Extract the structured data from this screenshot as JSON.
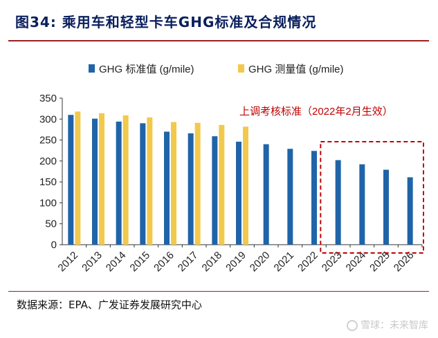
{
  "header": {
    "title": "图34:  乘用车和轻型卡车GHG标准及合规情况"
  },
  "footer": {
    "source": "数据来源：EPA、广发证券发展研究中心",
    "watermark": "雪球：未来智库"
  },
  "colors": {
    "standard": "#1f64a8",
    "measured": "#f2c94c",
    "annotation": "#c00000",
    "title": "#0a1f5c"
  },
  "chart_data": {
    "type": "bar",
    "categories": [
      "2012",
      "2013",
      "2014",
      "2015",
      "2016",
      "2017",
      "2018",
      "2019",
      "2020",
      "2021",
      "2022",
      "2023",
      "2024",
      "2025",
      "2026"
    ],
    "series": [
      {
        "name": "GHG 标准值 (g/mile)",
        "values": [
          310,
          301,
          294,
          290,
          270,
          266,
          259,
          246,
          240,
          229,
          224,
          202,
          192,
          179,
          161
        ]
      },
      {
        "name": "GHG 测量值 (g/mile)",
        "values": [
          318,
          314,
          309,
          304,
          293,
          291,
          286,
          282,
          null,
          null,
          null,
          null,
          null,
          null,
          null
        ]
      }
    ],
    "ylim": [
      0,
      350
    ],
    "yticks": [
      0,
      50,
      100,
      150,
      200,
      250,
      300,
      350
    ],
    "legend_position": "top",
    "grid": false,
    "annotation": {
      "text": "上调考核标准（2022年2月生效）",
      "highlight_categories": [
        "2023",
        "2024",
        "2025",
        "2026"
      ]
    }
  }
}
